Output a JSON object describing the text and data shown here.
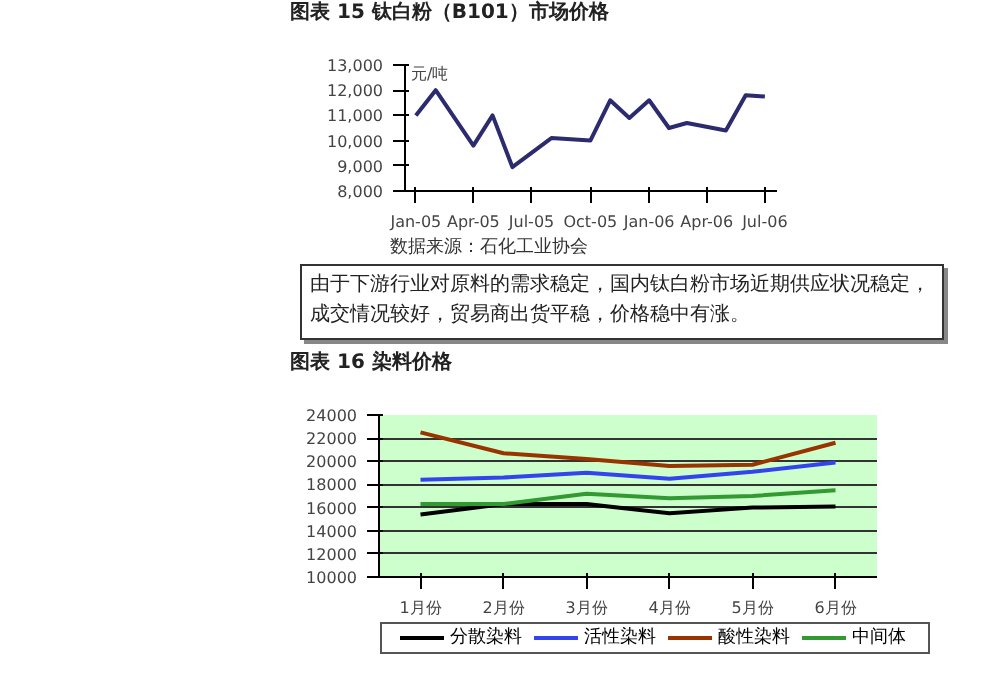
{
  "chart_data": [
    {
      "type": "line",
      "title": "图表 15 钛白粉（B101）市场价格",
      "ylabel": "元/吨",
      "annotations": [
        "数据来源：石化工业协会",
        "由于下游行业对原料的需求稳定，国内钛白粉市场近期供应状况稳定，成交情况较好，贸易商出货平稳，价格稳中有涨。"
      ],
      "x": [
        "2005-01",
        "2005-02",
        "2005-04",
        "2005-05",
        "2005-06",
        "2005-08",
        "2005-10",
        "2005-11",
        "2005-12",
        "2006-01",
        "2006-02",
        "2006-03",
        "2006-05",
        "2006-06",
        "2006-07"
      ],
      "series": [
        {
          "color": "#2b2b6e",
          "values": [
            11000,
            12000,
            9800,
            11000,
            8950,
            10100,
            10000,
            11600,
            10900,
            11600,
            10500,
            10700,
            10400,
            11800,
            11750
          ]
        }
      ],
      "xlim": [
        "2004-12-15",
        "2006-07-20"
      ],
      "xticks": [
        {
          "value": "2005-01",
          "label": "Jan-05"
        },
        {
          "value": "2005-04",
          "label": "Apr-05"
        },
        {
          "value": "2005-07",
          "label": "Jul-05"
        },
        {
          "value": "2005-10",
          "label": "Oct-05"
        },
        {
          "value": "2006-01",
          "label": "Jan-06"
        },
        {
          "value": "2006-04",
          "label": "Apr-06"
        },
        {
          "value": "2006-07",
          "label": "Jul-06"
        }
      ],
      "ylim": [
        8000,
        13000
      ],
      "yticks": [
        {
          "value": 8000,
          "label": "8,000"
        },
        {
          "value": 9000,
          "label": "9,000"
        },
        {
          "value": 10000,
          "label": "10,000"
        },
        {
          "value": 11000,
          "label": "11,000"
        },
        {
          "value": 12000,
          "label": "12,000"
        },
        {
          "value": 13000,
          "label": "13,000"
        }
      ]
    },
    {
      "type": "line",
      "title": "图表 16 染料价格",
      "categories": [
        "1月份",
        "2月份",
        "3月份",
        "4月份",
        "5月份",
        "6月份"
      ],
      "series": [
        {
          "name": "分散染料",
          "color": "#000000",
          "values": [
            15400,
            16300,
            16300,
            15500,
            16000,
            16100
          ]
        },
        {
          "name": "活性染料",
          "color": "#3344ee",
          "values": [
            18400,
            18600,
            19000,
            18500,
            19100,
            19900
          ]
        },
        {
          "name": "酸性染料",
          "color": "#993300",
          "values": [
            22500,
            20700,
            20200,
            19600,
            19700,
            21600
          ]
        },
        {
          "name": "中间体",
          "color": "#339933",
          "values": [
            16300,
            16300,
            17200,
            16800,
            17000,
            17500
          ]
        }
      ],
      "ylim": [
        10000,
        24000
      ],
      "yticks": [
        10000,
        12000,
        14000,
        16000,
        18000,
        20000,
        22000,
        24000
      ],
      "grid": "y",
      "legend": "bottom"
    }
  ]
}
